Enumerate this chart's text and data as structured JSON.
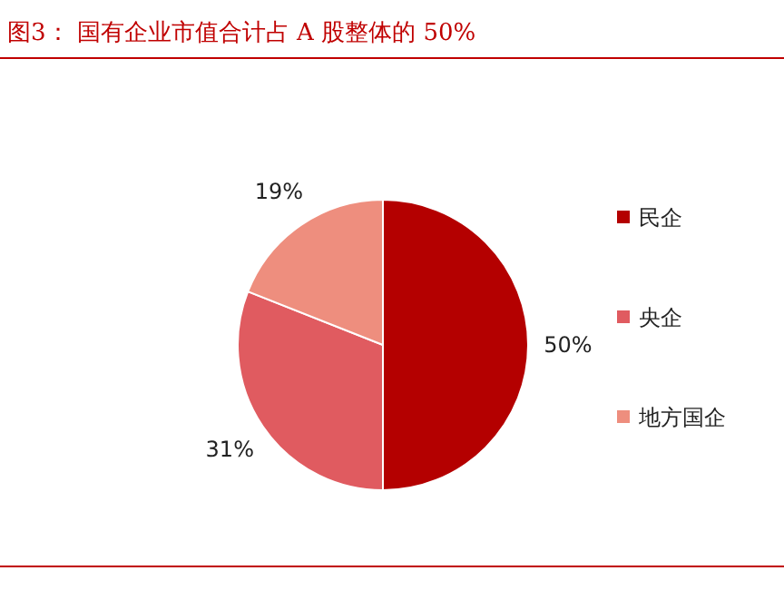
{
  "chart_data": {
    "type": "pie",
    "title": "图3：  国有企业市值合计占 A 股整体的 50%",
    "categories": [
      "民企",
      "央企",
      "地方国企"
    ],
    "values": [
      50,
      31,
      19
    ],
    "colors": [
      "#b40000",
      "#e05b60",
      "#ee8e7e"
    ],
    "value_labels": [
      "50%",
      "31%",
      "19%"
    ],
    "legend": "right"
  }
}
